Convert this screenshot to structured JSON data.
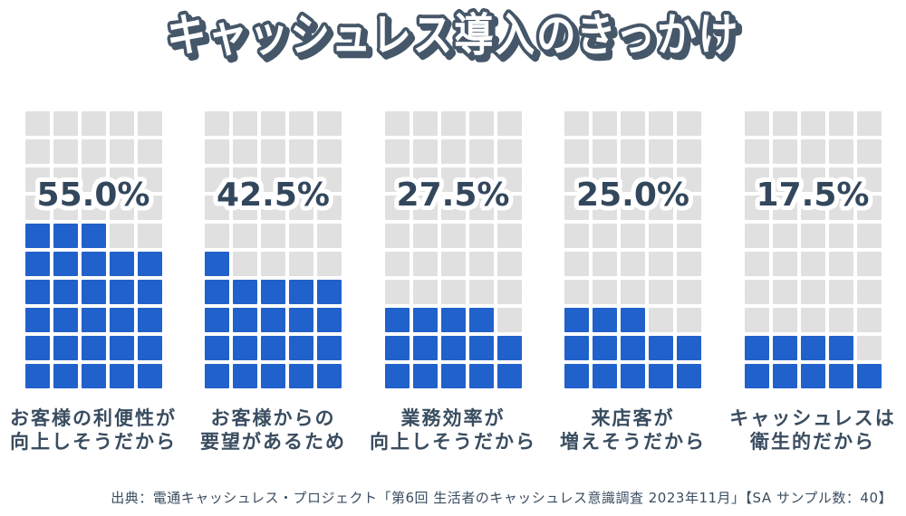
{
  "chart_data": {
    "type": "waffle",
    "title": "キャッシュレス導入のきっかけ",
    "categories": [
      "お客様の利便性が向上しそうだから",
      "お客様からの要望があるため",
      "業務効率が向上しそうだから",
      "来店客が増えそうだから",
      "キャッシュレスは衛生的だから"
    ],
    "values": [
      55.0,
      42.5,
      27.5,
      25.0,
      17.5
    ],
    "columns": [
      {
        "percent_label": "55.0%",
        "label_line1": "お客様の利便性が",
        "label_line2": "向上しそうだから",
        "filled_cells": 28
      },
      {
        "percent_label": "42.5%",
        "label_line1": "お客様からの",
        "label_line2": "要望があるため",
        "filled_cells": 21
      },
      {
        "percent_label": "27.5%",
        "label_line1": "業務効率が",
        "label_line2": "向上しそうだから",
        "filled_cells": 14
      },
      {
        "percent_label": "25.0%",
        "label_line1": "来店客が",
        "label_line2": "増えそうだから",
        "filled_cells": 13
      },
      {
        "percent_label": "17.5%",
        "label_line1": "キャッシュレスは",
        "label_line2": "衛生的だから",
        "filled_cells": 9
      }
    ],
    "grid": {
      "rows": 10,
      "cols": 5,
      "total_cells": 50,
      "percent_per_cell": 2,
      "fill_origin": "bottom-up, partial rows fill left-to-right"
    },
    "source": "出典：電通キャッシュレス・プロジェクト「第6回 生活者のキャッシュレス意識調査 2023年11月」【SA サンプル数：40】"
  },
  "colors": {
    "filled_cell": "#2161cb",
    "empty_cell": "#e0e0e0",
    "text": "#33475c",
    "label_text": "#3a4d60",
    "title_fill": "#ffffff",
    "title_outline": "#455769"
  }
}
